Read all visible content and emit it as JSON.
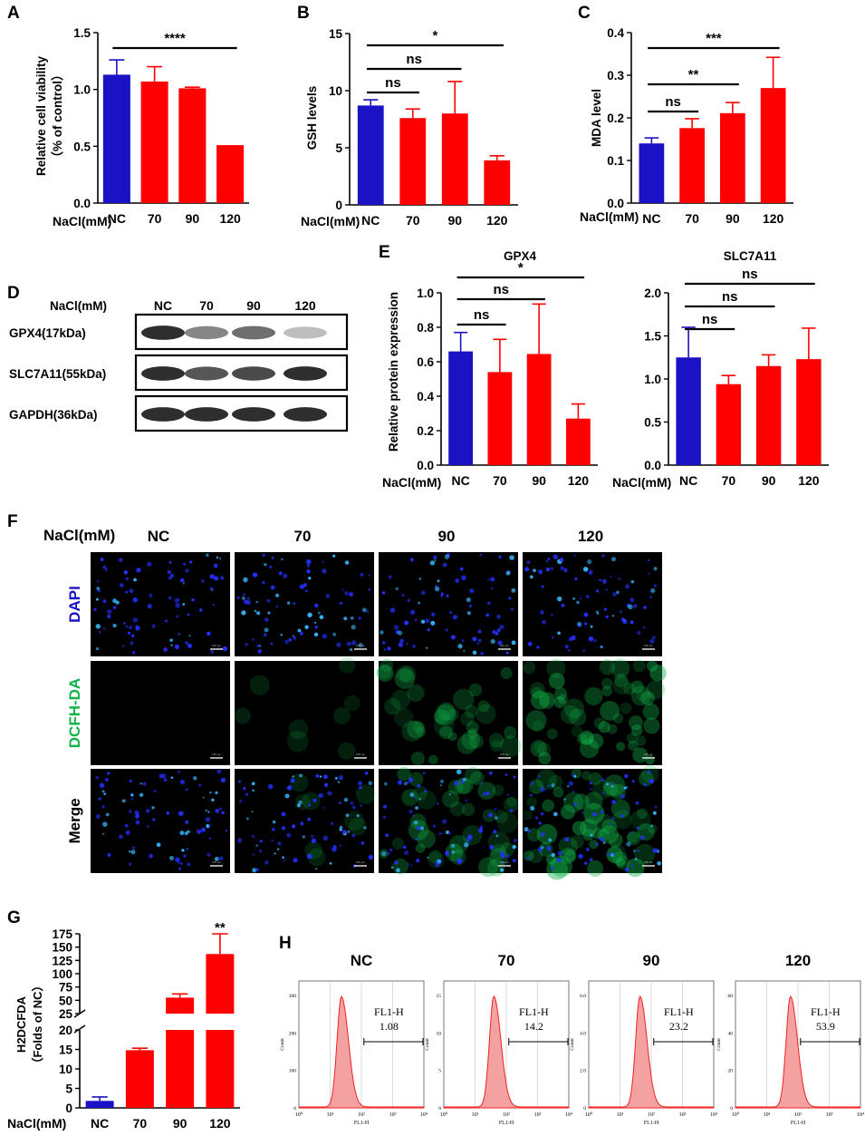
{
  "panels": {
    "A": {
      "label": "A"
    },
    "B": {
      "label": "B"
    },
    "C": {
      "label": "C"
    },
    "D": {
      "label": "D"
    },
    "E": {
      "label": "E"
    },
    "F": {
      "label": "F"
    },
    "G": {
      "label": "G"
    },
    "H": {
      "label": "H"
    }
  },
  "colors": {
    "nc": "#1a12c4",
    "treat": "#ff0000",
    "dapi": "#1a12c4",
    "dcfh": "#11b34a"
  },
  "chart_data": [
    {
      "id": "A",
      "type": "bar",
      "categories": [
        "NC",
        "70",
        "90",
        "120"
      ],
      "values": [
        1.13,
        1.07,
        1.01,
        0.51
      ],
      "errors": [
        0.13,
        0.13,
        0.01,
        0
      ],
      "xlabel": "NaCl(mM)",
      "ylabel_lines": [
        "Relative cell viability",
        "（% of control）"
      ],
      "ylim": [
        0,
        1.5
      ],
      "yticks": [
        "0.0",
        "0.5",
        "1.0",
        "1.5"
      ],
      "sig": [
        {
          "from": 0,
          "to": 3,
          "label": "****"
        }
      ]
    },
    {
      "id": "B",
      "type": "bar",
      "categories": [
        "NC",
        "70",
        "90",
        "120"
      ],
      "values": [
        8.7,
        7.6,
        8.0,
        3.9
      ],
      "errors": [
        0.5,
        0.8,
        2.8,
        0.4
      ],
      "xlabel": "NaCl(mM)",
      "ylabel_lines": [
        "GSH levels"
      ],
      "ylim": [
        0,
        15
      ],
      "yticks": [
        "0",
        "5",
        "10",
        "15"
      ],
      "sig": [
        {
          "from": 0,
          "to": 1,
          "label": "ns"
        },
        {
          "from": 0,
          "to": 2,
          "label": "ns"
        },
        {
          "from": 0,
          "to": 3,
          "label": "*"
        }
      ]
    },
    {
      "id": "C",
      "type": "bar",
      "categories": [
        "NC",
        "70",
        "90",
        "120"
      ],
      "values": [
        0.14,
        0.176,
        0.211,
        0.27
      ],
      "errors": [
        0.013,
        0.022,
        0.025,
        0.072
      ],
      "xlabel": "NaCl(mM)",
      "ylabel_lines": [
        "MDA level"
      ],
      "ylim": [
        0,
        0.4
      ],
      "yticks": [
        "0.0",
        "0.1",
        "0.2",
        "0.3",
        "0.4"
      ],
      "sig": [
        {
          "from": 0,
          "to": 1,
          "label": "ns"
        },
        {
          "from": 0,
          "to": 2,
          "label": "**"
        },
        {
          "from": 0,
          "to": 3,
          "label": "***"
        }
      ]
    },
    {
      "id": "E1",
      "type": "bar",
      "title": "GPX4",
      "categories": [
        "NC",
        "70",
        "90",
        "120"
      ],
      "values": [
        0.66,
        0.54,
        0.645,
        0.27
      ],
      "errors": [
        0.11,
        0.19,
        0.29,
        0.085
      ],
      "xlabel": "NaCl(mM)",
      "ylabel_lines": [
        "Relative protein expression"
      ],
      "ylim": [
        0,
        1.0
      ],
      "yticks": [
        "0.0",
        "0.2",
        "0.4",
        "0.6",
        "0.8",
        "1.0"
      ],
      "sig": [
        {
          "from": 0,
          "to": 1,
          "label": "ns"
        },
        {
          "from": 0,
          "to": 2,
          "label": "ns"
        },
        {
          "from": 0,
          "to": 3,
          "label": "*"
        }
      ]
    },
    {
      "id": "E2",
      "type": "bar",
      "title": "SLC7A11",
      "categories": [
        "NC",
        "70",
        "90",
        "120"
      ],
      "values": [
        1.25,
        0.94,
        1.15,
        1.23
      ],
      "errors": [
        0.35,
        0.1,
        0.13,
        0.36
      ],
      "xlabel": "NaCl(mM)",
      "ylabel_lines": [],
      "ylim": [
        0,
        2.0
      ],
      "yticks": [
        "0.0",
        "0.5",
        "1.0",
        "1.5",
        "2.0"
      ],
      "sig": [
        {
          "from": 0,
          "to": 1,
          "label": "ns"
        },
        {
          "from": 0,
          "to": 2,
          "label": "ns"
        },
        {
          "from": 0,
          "to": 3,
          "label": "ns"
        }
      ]
    },
    {
      "id": "G",
      "type": "bar",
      "categories": [
        "NC",
        "70",
        "90",
        "120"
      ],
      "values": [
        1.8,
        14.8,
        55,
        137
      ],
      "errors": [
        1.0,
        0.5,
        7,
        38
      ],
      "xlabel": "NaCl(mM)",
      "ylabel_lines": [
        "H2DCFDA",
        "（Folds of NC）"
      ],
      "yticks_low": [
        "0",
        "5",
        "10",
        "15",
        "20"
      ],
      "yticks_high": [
        "25",
        "50",
        "75",
        "100",
        "125",
        "150",
        "175"
      ],
      "axis_break": [
        20,
        25
      ],
      "sig_star": {
        "index": 3,
        "label": "**"
      }
    },
    {
      "id": "H",
      "type": "histogram",
      "xlabel": "FL1-H",
      "ylabel": "Count",
      "xticks": [
        "10⁰",
        "10¹",
        "10²",
        "10³",
        "10⁴"
      ],
      "histograms": [
        {
          "title": "NC",
          "gate_label": "FL1-H",
          "gate_value": "1.08",
          "yticks": [
            "0",
            "100",
            "200",
            "300"
          ]
        },
        {
          "title": "70",
          "gate_label": "FL1-H",
          "gate_value": "14.2",
          "yticks": [
            "0",
            "5",
            "10",
            "15"
          ]
        },
        {
          "title": "90",
          "gate_label": "FL1-H",
          "gate_value": "23.2",
          "yticks": [
            "0",
            "2.0",
            "4.0",
            "6.0"
          ]
        },
        {
          "title": "120",
          "gate_label": "FL1-H",
          "gate_value": "53.9",
          "yticks": [
            "0",
            "20",
            "40",
            "60"
          ]
        }
      ]
    }
  ],
  "western": {
    "header": "NaCl(mM)",
    "lanes": [
      "NC",
      "70",
      "90",
      "120"
    ],
    "rows": [
      {
        "label": "GPX4(17kDa)",
        "intensity": [
          0.95,
          0.6,
          0.7,
          0.3
        ]
      },
      {
        "label": "SLC7A11(55kDa)",
        "intensity": [
          0.95,
          0.8,
          0.85,
          0.95
        ]
      },
      {
        "label": "GAPDH(36kDa)",
        "intensity": [
          0.95,
          0.95,
          0.95,
          0.95
        ]
      }
    ]
  },
  "microscopy": {
    "header": "NaCl(mM)",
    "columns": [
      "NC",
      "70",
      "90",
      "120"
    ],
    "rows": [
      "DAPI",
      "DCFH-DA",
      "Merge"
    ],
    "scale_bar": "100 μm"
  }
}
